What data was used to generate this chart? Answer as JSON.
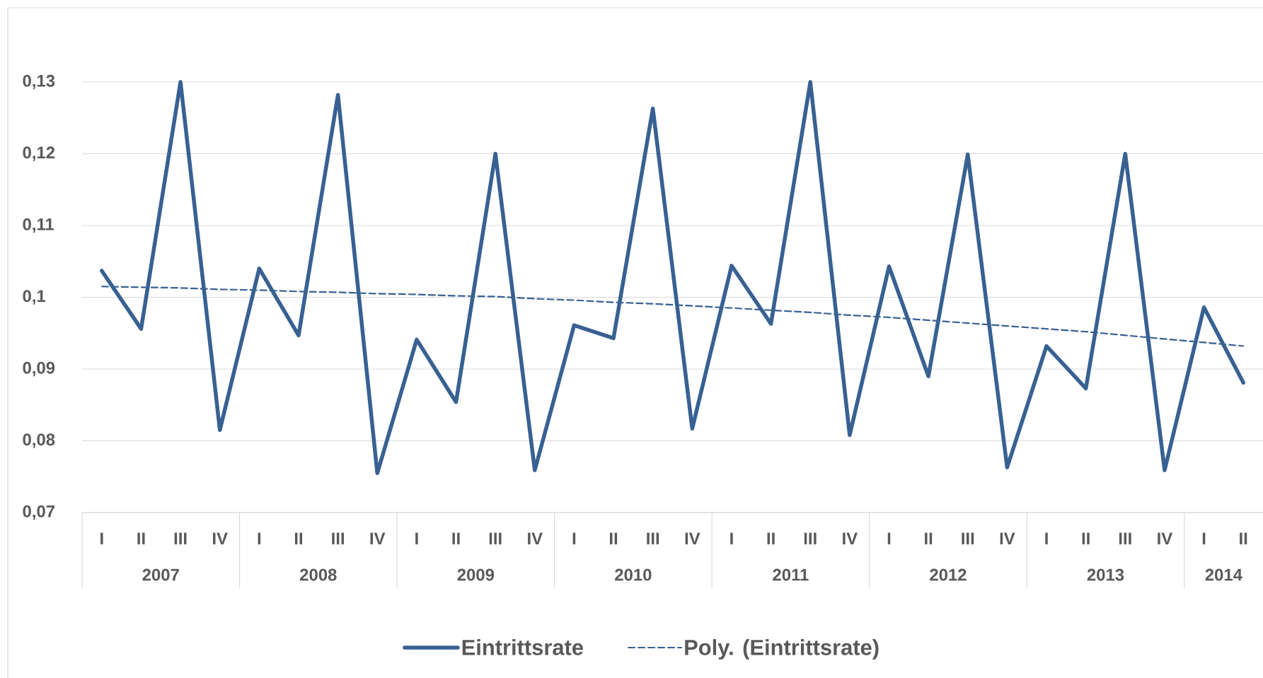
{
  "chart_data": {
    "type": "line",
    "categories": [
      "I",
      "II",
      "III",
      "IV",
      "I",
      "II",
      "III",
      "IV",
      "I",
      "II",
      "III",
      "IV",
      "I",
      "II",
      "III",
      "IV",
      "I",
      "II",
      "III",
      "IV",
      "I",
      "II",
      "III",
      "IV",
      "I",
      "II",
      "III",
      "IV",
      "I",
      "II"
    ],
    "series": [
      {
        "name": "Eintrittsrate",
        "color": "#386192",
        "line_style": "solid",
        "values": [
          0.1037,
          0.0956,
          0.13,
          0.0815,
          0.104,
          0.0947,
          0.1282,
          0.0755,
          0.0941,
          0.0854,
          0.12,
          0.0759,
          0.0961,
          0.0943,
          0.1263,
          0.0817,
          0.1044,
          0.0963,
          0.13,
          0.0808,
          0.1043,
          0.089,
          0.1199,
          0.0763,
          0.0932,
          0.0873,
          0.12,
          0.0759,
          0.0986,
          0.0881
        ]
      },
      {
        "name": "Poly. (Eintrittsrate)",
        "color": "#386192",
        "line_style": "dashed",
        "values": [
          0.1015,
          0.1014,
          0.1013,
          0.1011,
          0.101,
          0.1008,
          0.1007,
          0.1005,
          0.1004,
          0.1002,
          0.1001,
          0.0998,
          0.0996,
          0.0993,
          0.0991,
          0.0988,
          0.0985,
          0.0982,
          0.0979,
          0.0975,
          0.0972,
          0.0968,
          0.0964,
          0.096,
          0.0956,
          0.0952,
          0.0947,
          0.0942,
          0.0937,
          0.0932
        ]
      }
    ],
    "annotations": [
      "2007",
      "2008",
      "2009",
      "2010",
      "2011",
      "2012",
      "2013",
      "2014"
    ],
    "ylim": [
      0.07,
      0.13
    ],
    "yticks": [
      {
        "value": 0.07,
        "label": "0,07"
      },
      {
        "value": 0.08,
        "label": "0,08"
      },
      {
        "value": 0.09,
        "label": "0,09"
      },
      {
        "value": 0.1,
        "label": "0,1"
      },
      {
        "value": 0.11,
        "label": "0,11"
      },
      {
        "value": 0.12,
        "label": "0,12"
      },
      {
        "value": 0.13,
        "label": "0,13"
      }
    ],
    "grid": "y",
    "legend": "bottom"
  }
}
